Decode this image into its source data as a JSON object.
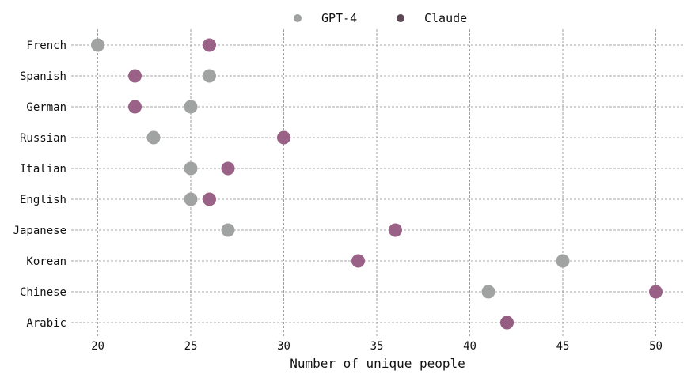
{
  "chart_data": {
    "type": "scatter",
    "title": "",
    "xlabel": "Number of unique people",
    "ylabel": "",
    "xlim": [
      18.5,
      51.5
    ],
    "xticks": [
      20,
      25,
      30,
      35,
      40,
      45,
      50
    ],
    "categories": [
      "French",
      "Spanish",
      "German",
      "Russian",
      "Italian",
      "English",
      "Japanese",
      "Korean",
      "Chinese",
      "Arabic"
    ],
    "series": [
      {
        "name": "GPT-4",
        "color": "#a0a3a2",
        "values": [
          20,
          26,
          25,
          23,
          25,
          25,
          27,
          45,
          41,
          42
        ]
      },
      {
        "name": "Claude",
        "color": "#955a80",
        "values": [
          26,
          22,
          22,
          30,
          27,
          26,
          36,
          34,
          50,
          42
        ]
      }
    ],
    "grid": true,
    "legend_position": "top-center"
  }
}
